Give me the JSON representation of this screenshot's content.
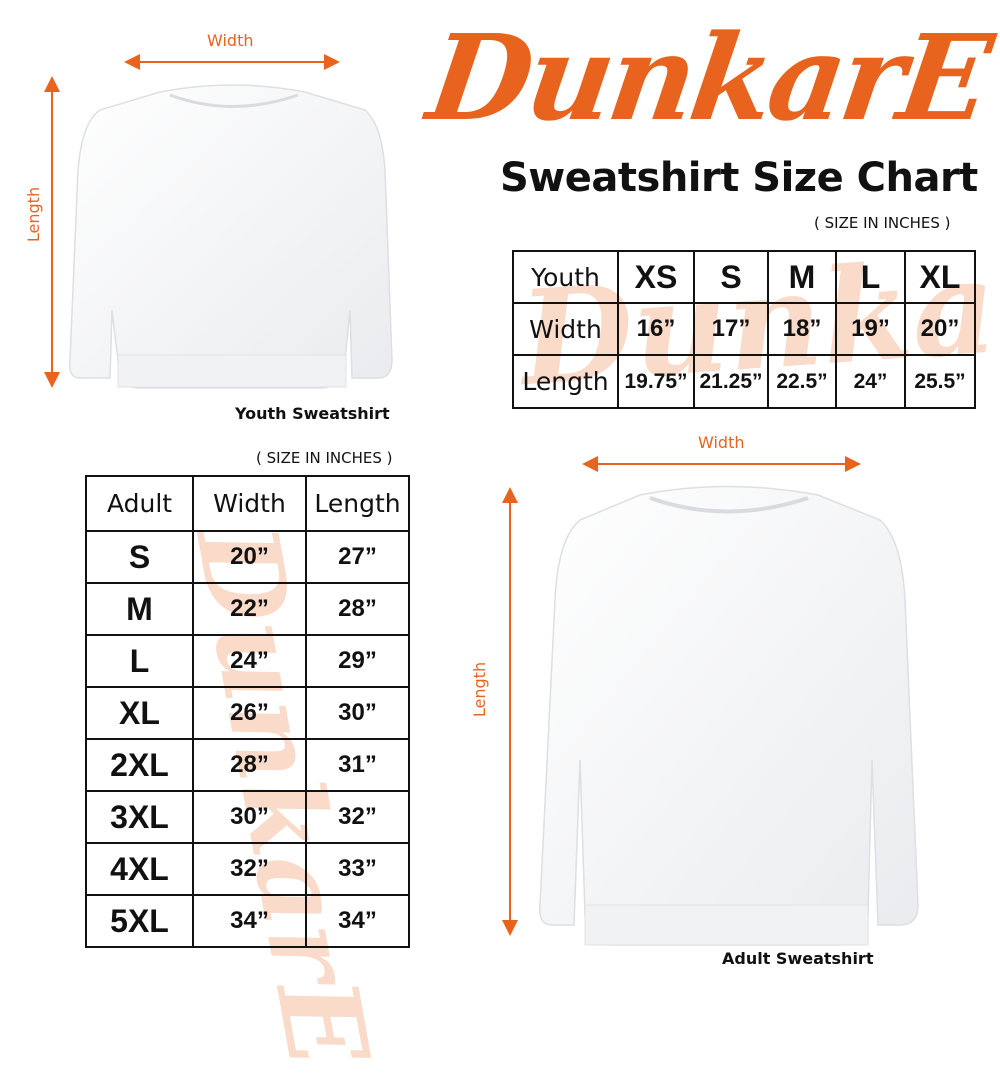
{
  "brand": {
    "logo_text": "DunkarE",
    "color": "#E8641E"
  },
  "title": "Sweatshirt Size Chart",
  "youth": {
    "unit_note": "( SIZE IN INCHES )",
    "caption": "Youth Sweatshirt",
    "width_label": "Width",
    "length_label": "Length",
    "table": {
      "header": [
        "Youth",
        "XS",
        "S",
        "M",
        "L",
        "XL"
      ],
      "rows": [
        [
          "Width",
          "16”",
          "17”",
          "18”",
          "19”",
          "20”"
        ],
        [
          "Length",
          "19.75”",
          "21.25”",
          "22.5”",
          "24”",
          "25.5”"
        ]
      ]
    }
  },
  "adult": {
    "unit_note": "( SIZE IN INCHES )",
    "caption": "Adult Sweatshirt",
    "width_label": "Width",
    "length_label": "Length",
    "table": {
      "header": [
        "Adult",
        "Width",
        "Length"
      ],
      "rows": [
        [
          "S",
          "20”",
          "27”"
        ],
        [
          "M",
          "22”",
          "28”"
        ],
        [
          "L",
          "24”",
          "29”"
        ],
        [
          "XL",
          "26”",
          "30”"
        ],
        [
          "2XL",
          "28”",
          "31”"
        ],
        [
          "3XL",
          "30”",
          "32”"
        ],
        [
          "4XL",
          "32”",
          "33”"
        ],
        [
          "5XL",
          "34”",
          "34”"
        ]
      ]
    }
  }
}
